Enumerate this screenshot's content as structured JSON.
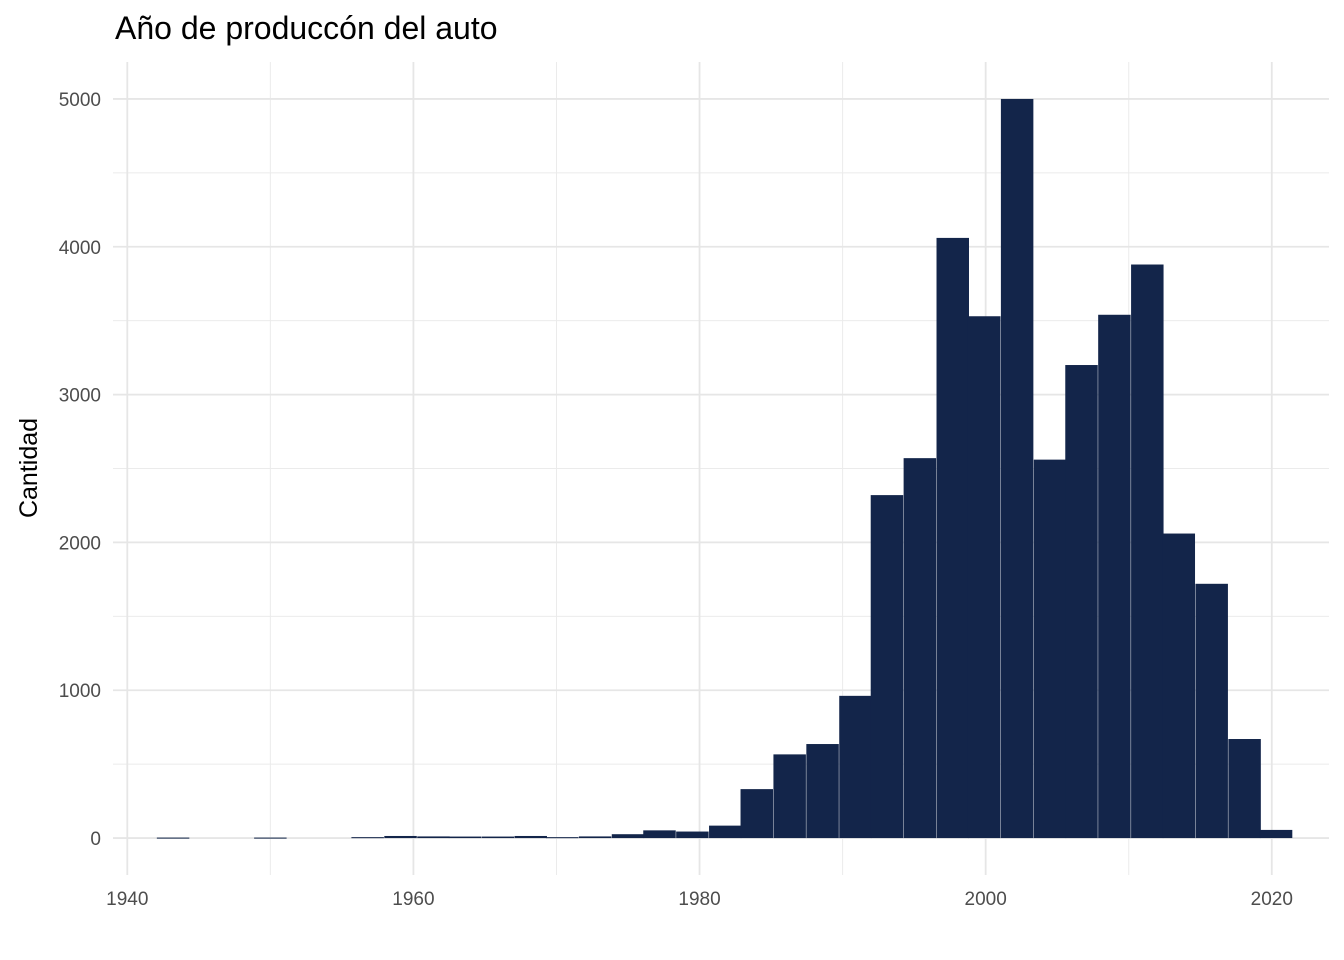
{
  "chart_data": {
    "type": "bar",
    "title": "Año de produccón del auto",
    "xlabel": "",
    "ylabel": "Cantidad",
    "xlim": [
      1939,
      2024
    ],
    "ylim": [
      -250,
      5250
    ],
    "x_ticks": [
      1940,
      1960,
      1980,
      2000,
      2020
    ],
    "y_ticks": [
      0,
      1000,
      2000,
      3000,
      4000,
      5000
    ],
    "bin_width": 2.27,
    "bar_color": "#13254a",
    "grid": true,
    "legend": "none",
    "bins": [
      {
        "x": 1943.2,
        "value": 3
      },
      {
        "x": 1950.0,
        "value": 3
      },
      {
        "x": 1956.8,
        "value": 6
      },
      {
        "x": 1959.1,
        "value": 14
      },
      {
        "x": 1961.4,
        "value": 11
      },
      {
        "x": 1963.6,
        "value": 10
      },
      {
        "x": 1965.9,
        "value": 10
      },
      {
        "x": 1968.2,
        "value": 14
      },
      {
        "x": 1970.4,
        "value": 6
      },
      {
        "x": 1972.7,
        "value": 11
      },
      {
        "x": 1975.0,
        "value": 26
      },
      {
        "x": 1977.2,
        "value": 52
      },
      {
        "x": 1979.5,
        "value": 44
      },
      {
        "x": 1981.8,
        "value": 84
      },
      {
        "x": 1984.0,
        "value": 331
      },
      {
        "x": 1986.3,
        "value": 566
      },
      {
        "x": 1988.6,
        "value": 636
      },
      {
        "x": 1990.9,
        "value": 962
      },
      {
        "x": 1993.1,
        "value": 2320
      },
      {
        "x": 1995.4,
        "value": 2570
      },
      {
        "x": 1997.7,
        "value": 4060
      },
      {
        "x": 1999.9,
        "value": 3530
      },
      {
        "x": 2002.2,
        "value": 5000
      },
      {
        "x": 2004.5,
        "value": 2560
      },
      {
        "x": 2006.7,
        "value": 3200
      },
      {
        "x": 2009.0,
        "value": 3540
      },
      {
        "x": 2011.3,
        "value": 3880
      },
      {
        "x": 2013.5,
        "value": 2060
      },
      {
        "x": 2015.8,
        "value": 1720
      },
      {
        "x": 2018.1,
        "value": 670
      },
      {
        "x": 2020.3,
        "value": 55
      }
    ]
  }
}
